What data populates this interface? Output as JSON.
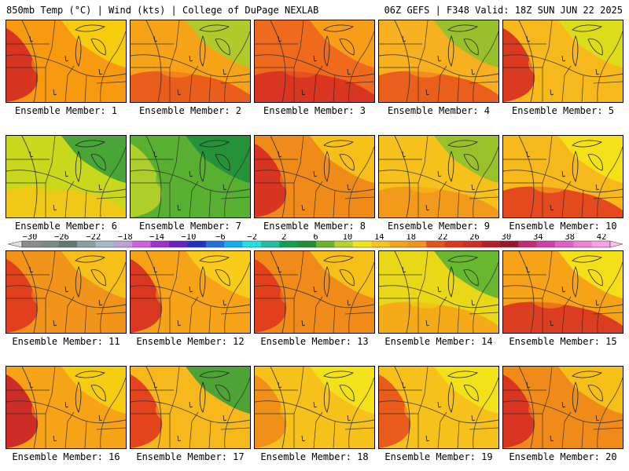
{
  "header": {
    "left": "850mb Temp (°C) | Wind (kts) | College of DuPage NEXLAB",
    "right": "06Z GEFS | F348 Valid: 18Z SUN JUN 22 2025"
  },
  "members": [
    {
      "label": "Ensemble Member: 1",
      "base": "#f79a10",
      "warm": "#d42a22",
      "cool": "#f5d210",
      "warmSide": "west"
    },
    {
      "label": "Ensemble Member: 2",
      "base": "#f7a318",
      "warm": "#e8511c",
      "cool": "#a7cf2b",
      "warmSide": "south"
    },
    {
      "label": "Ensemble Member: 3",
      "base": "#ef6a1c",
      "warm": "#d62b22",
      "cool": "#f7a318",
      "warmSide": "south"
    },
    {
      "label": "Ensemble Member: 4",
      "base": "#f7b020",
      "warm": "#e8511c",
      "cool": "#8cc22c",
      "warmSide": "south"
    },
    {
      "label": "Ensemble Member: 5",
      "base": "#f7b81c",
      "warm": "#d62b22",
      "cool": "#d8e01c",
      "warmSide": "west"
    },
    {
      "label": "Ensemble Member: 6",
      "base": "#c8d81c",
      "warm": "#f7c518",
      "cool": "#3aa13a",
      "warmSide": "south"
    },
    {
      "label": "Ensemble Member: 7",
      "base": "#58b030",
      "warm": "#b8d22a",
      "cool": "#1f8f3a",
      "warmSide": "west"
    },
    {
      "label": "Ensemble Member: 8",
      "base": "#f08b1a",
      "warm": "#d42a22",
      "cool": "#f7c518",
      "warmSide": "west"
    },
    {
      "label": "Ensemble Member: 9",
      "base": "#f7c11c",
      "warm": "#f2931a",
      "cool": "#8cc22c",
      "warmSide": "south"
    },
    {
      "label": "Ensemble Member: 10",
      "base": "#f7b81c",
      "warm": "#e0361e",
      "cool": "#f3e518",
      "warmSide": "south"
    },
    {
      "label": "Ensemble Member: 11",
      "base": "#f2931a",
      "warm": "#e0361e",
      "cool": "#f7c518",
      "warmSide": "west"
    },
    {
      "label": "Ensemble Member: 12",
      "base": "#f7a318",
      "warm": "#d62b22",
      "cool": "#f7d018",
      "warmSide": "west"
    },
    {
      "label": "Ensemble Member: 13",
      "base": "#f08b1a",
      "warm": "#e0361e",
      "cool": "#f7c518",
      "warmSide": "west"
    },
    {
      "label": "Ensemble Member: 14",
      "base": "#e8d818",
      "warm": "#f7a318",
      "cool": "#5ab434",
      "warmSide": "south"
    },
    {
      "label": "Ensemble Member: 15",
      "base": "#f7a318",
      "warm": "#d62b22",
      "cool": "#f3e518",
      "warmSide": "south"
    },
    {
      "label": "Ensemble Member: 16",
      "base": "#f7a318",
      "warm": "#c82028",
      "cool": "#f5d210",
      "warmSide": "west"
    },
    {
      "label": "Ensemble Member: 17",
      "base": "#f7b81c",
      "warm": "#e0361e",
      "cool": "#3aa13a",
      "warmSide": "west"
    },
    {
      "label": "Ensemble Member: 18",
      "base": "#f7c11c",
      "warm": "#f08b1a",
      "cool": "#f3e518",
      "warmSide": "west"
    },
    {
      "label": "Ensemble Member: 19",
      "base": "#f7c11c",
      "warm": "#e8511c",
      "cool": "#f3e518",
      "warmSide": "west"
    },
    {
      "label": "Ensemble Member: 20",
      "base": "#f08b1a",
      "warm": "#d62b22",
      "cool": "#f7c518",
      "warmSide": "west"
    }
  ],
  "colorbar": {
    "ticks": [
      "−30",
      "−26",
      "−22",
      "−18",
      "−14",
      "−10",
      "−6",
      "−2",
      "2",
      "6",
      "10",
      "14",
      "18",
      "22",
      "26",
      "30",
      "34",
      "38",
      "42"
    ],
    "colors": [
      "#8c8c8c",
      "#7a8a84",
      "#5e7a74",
      "#8aa0a0",
      "#a7b8c8",
      "#c0a0d8",
      "#d060e0",
      "#a030d0",
      "#6a1fc8",
      "#2030c8",
      "#1f70e0",
      "#10b0f0",
      "#20e0e0",
      "#20c0a0",
      "#10a050",
      "#1f8f3a",
      "#6ab42a",
      "#b8d22a",
      "#f3e518",
      "#f7c518",
      "#f7a318",
      "#f2931a",
      "#e8511c",
      "#e0361e",
      "#d62b22",
      "#b81e26",
      "#981828",
      "#c82878",
      "#d040a8",
      "#e060c8",
      "#f080d8",
      "#f8a0e8"
    ]
  }
}
